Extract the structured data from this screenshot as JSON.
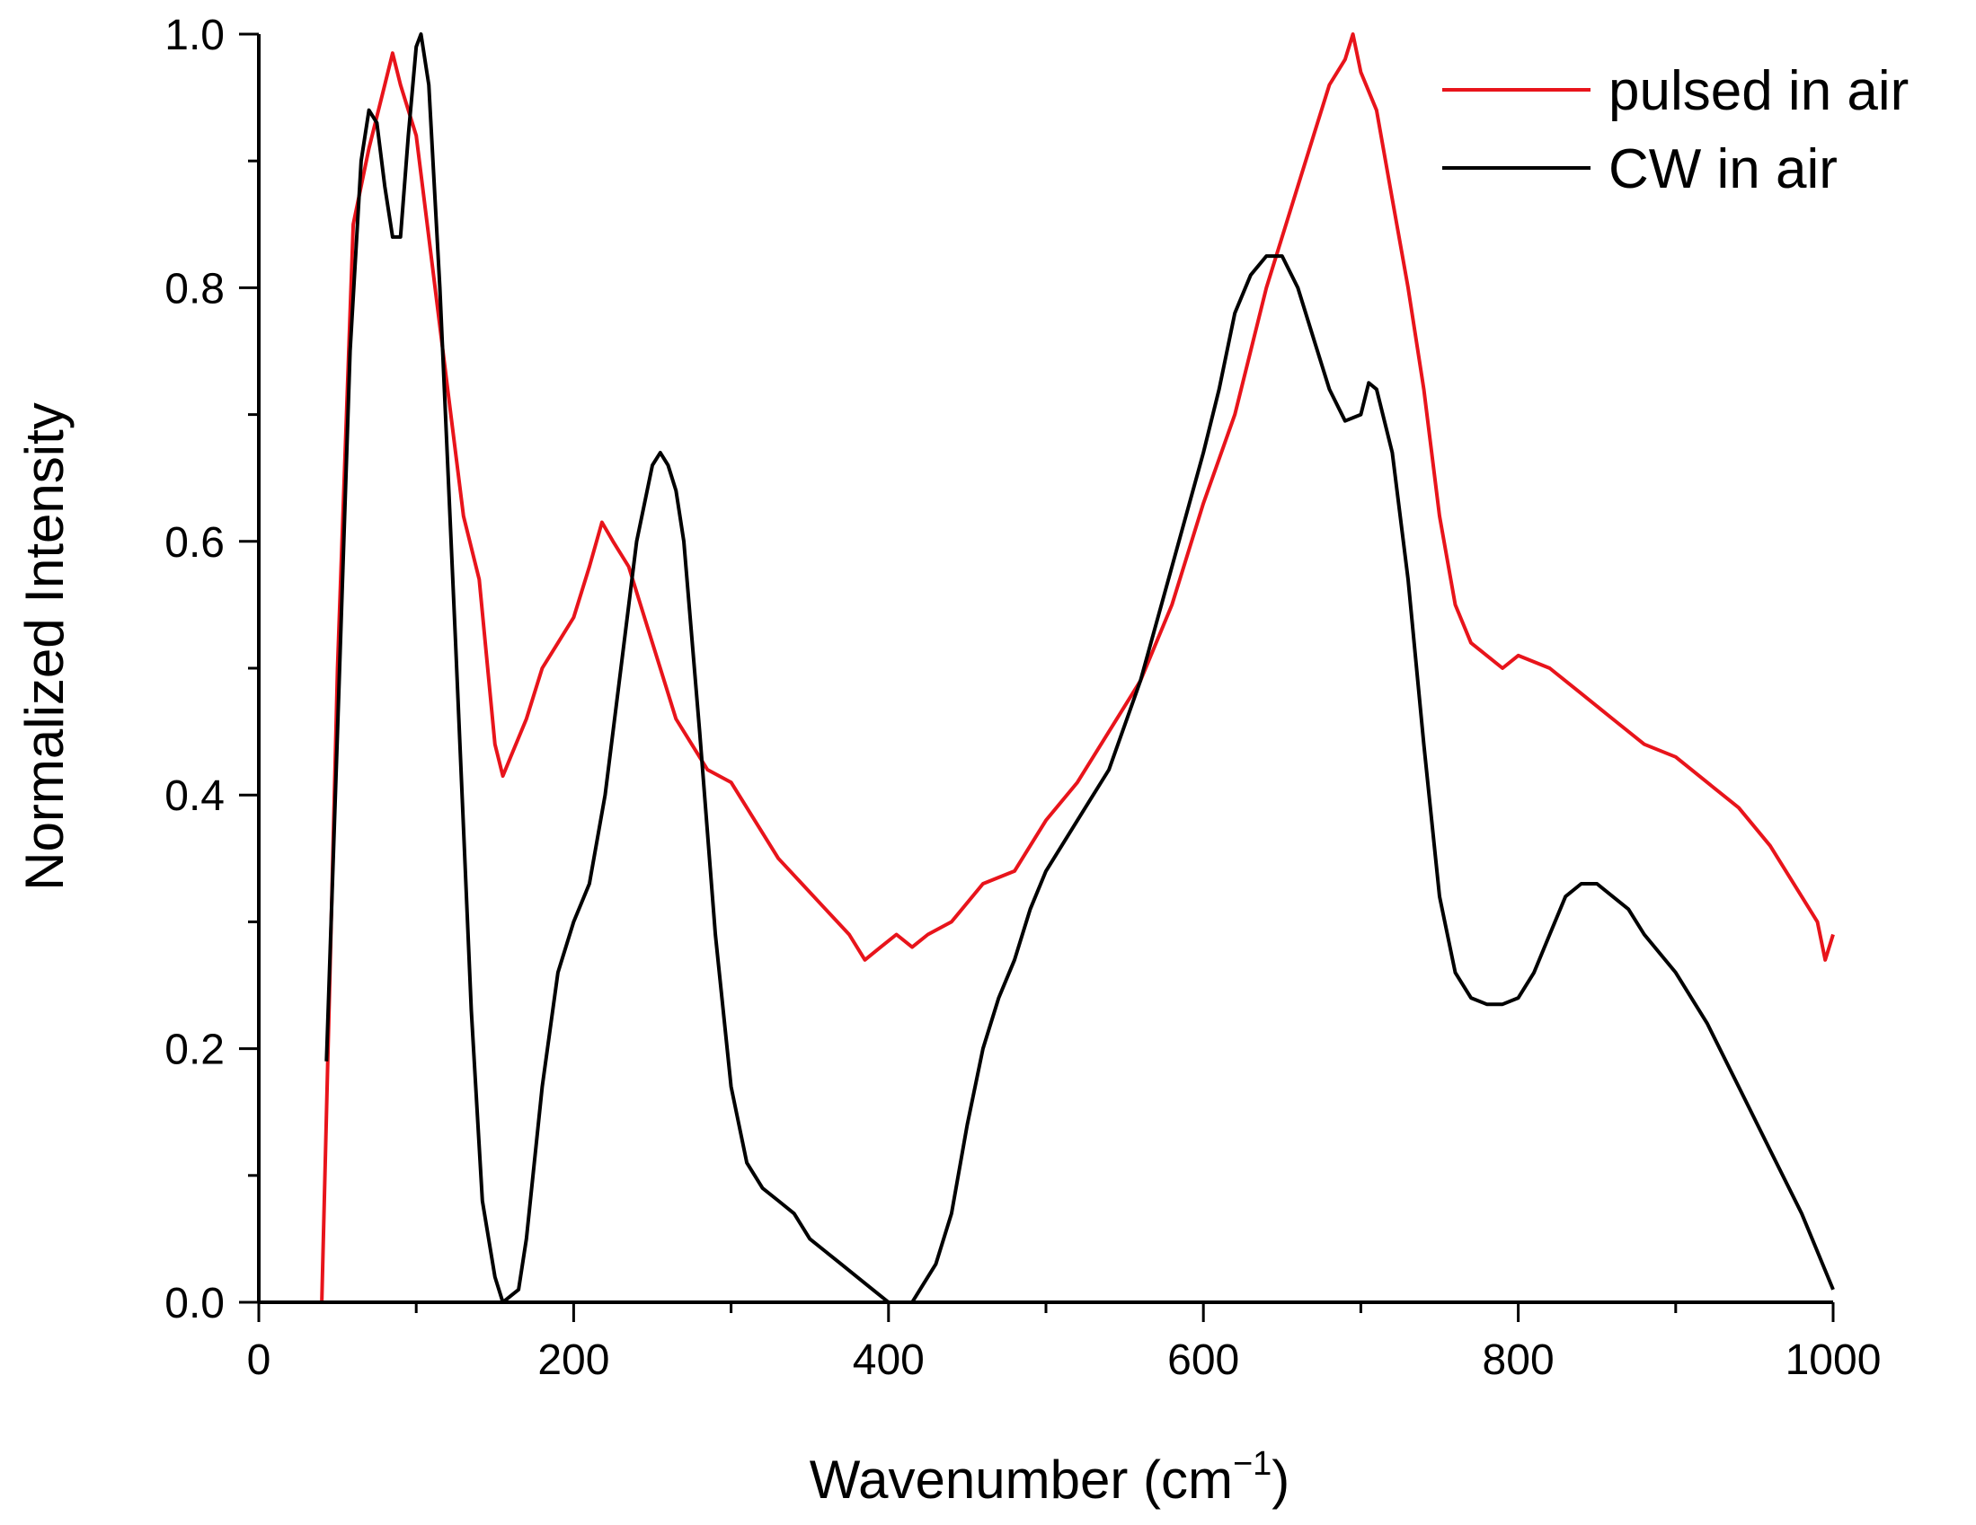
{
  "chart_data": {
    "type": "line",
    "xlabel": "Wavenumber (cm",
    "xlabel_sup": "−1",
    "xlabel_close": ")",
    "ylabel": "Normalized Intensity",
    "xlim": [
      0,
      1000
    ],
    "ylim": [
      0,
      1.0
    ],
    "x_ticks": [
      0,
      200,
      400,
      600,
      800,
      1000
    ],
    "x_tick_labels": [
      "0",
      "200",
      "400",
      "600",
      "800",
      "1000"
    ],
    "y_ticks": [
      0,
      0.2,
      0.4,
      0.6,
      0.8,
      1.0
    ],
    "y_tick_labels": [
      "0.0",
      "0.2",
      "0.4",
      "0.6",
      "0.8",
      "1.0"
    ],
    "grid": false,
    "legend_position": "top-right",
    "series": [
      {
        "name": "pulsed in air",
        "color": "#e8141b",
        "x": [
          40,
          50,
          60,
          70,
          80,
          85,
          90,
          100,
          110,
          120,
          130,
          140,
          150,
          155,
          160,
          170,
          180,
          190,
          200,
          210,
          218,
          225,
          235,
          245,
          255,
          265,
          275,
          285,
          300,
          315,
          330,
          345,
          360,
          375,
          385,
          395,
          405,
          415,
          425,
          440,
          460,
          480,
          500,
          520,
          540,
          560,
          580,
          600,
          620,
          640,
          650,
          660,
          670,
          680,
          690,
          695,
          700,
          710,
          720,
          730,
          740,
          750,
          760,
          770,
          780,
          790,
          800,
          820,
          840,
          860,
          880,
          900,
          920,
          940,
          960,
          980,
          990,
          995,
          1000
        ],
        "y": [
          0.0,
          0.5,
          0.85,
          0.91,
          0.96,
          0.985,
          0.96,
          0.92,
          0.82,
          0.72,
          0.62,
          0.57,
          0.44,
          0.415,
          0.43,
          0.46,
          0.5,
          0.52,
          0.54,
          0.58,
          0.615,
          0.6,
          0.58,
          0.54,
          0.5,
          0.46,
          0.44,
          0.42,
          0.41,
          0.38,
          0.35,
          0.33,
          0.31,
          0.29,
          0.27,
          0.28,
          0.29,
          0.28,
          0.29,
          0.3,
          0.33,
          0.34,
          0.38,
          0.41,
          0.45,
          0.49,
          0.55,
          0.63,
          0.7,
          0.8,
          0.84,
          0.88,
          0.92,
          0.96,
          0.98,
          1.0,
          0.97,
          0.94,
          0.87,
          0.8,
          0.72,
          0.62,
          0.55,
          0.52,
          0.51,
          0.5,
          0.51,
          0.5,
          0.48,
          0.46,
          0.44,
          0.43,
          0.41,
          0.39,
          0.36,
          0.32,
          0.3,
          0.27,
          0.29
        ]
      },
      {
        "name": "CW in air",
        "color": "#000000",
        "x": [
          43,
          50,
          58,
          65,
          70,
          75,
          80,
          85,
          90,
          95,
          100,
          103,
          108,
          115,
          125,
          135,
          142,
          150,
          155,
          160,
          165,
          170,
          180,
          190,
          200,
          210,
          220,
          230,
          240,
          250,
          255,
          260,
          265,
          270,
          280,
          290,
          300,
          310,
          320,
          330,
          340,
          350,
          360,
          370,
          380,
          390,
          400,
          405,
          410,
          415,
          420,
          430,
          440,
          450,
          460,
          470,
          480,
          490,
          500,
          510,
          520,
          540,
          560,
          580,
          600,
          610,
          620,
          630,
          640,
          650,
          660,
          670,
          680,
          690,
          700,
          705,
          710,
          720,
          730,
          740,
          750,
          760,
          770,
          780,
          790,
          800,
          810,
          820,
          830,
          840,
          850,
          860,
          870,
          880,
          900,
          920,
          940,
          960,
          980,
          990,
          1000
        ],
        "y": [
          0.19,
          0.45,
          0.75,
          0.9,
          0.94,
          0.93,
          0.88,
          0.84,
          0.84,
          0.92,
          0.99,
          1.0,
          0.96,
          0.8,
          0.52,
          0.23,
          0.08,
          0.02,
          0.0,
          0.005,
          0.01,
          0.05,
          0.17,
          0.26,
          0.3,
          0.33,
          0.4,
          0.5,
          0.6,
          0.66,
          0.67,
          0.66,
          0.64,
          0.6,
          0.45,
          0.29,
          0.17,
          0.11,
          0.09,
          0.08,
          0.07,
          0.05,
          0.04,
          0.03,
          0.02,
          0.01,
          0.0,
          0.0,
          0.0,
          0.0,
          0.01,
          0.03,
          0.07,
          0.14,
          0.2,
          0.24,
          0.27,
          0.31,
          0.34,
          0.36,
          0.38,
          0.42,
          0.49,
          0.58,
          0.67,
          0.72,
          0.78,
          0.81,
          0.825,
          0.825,
          0.8,
          0.76,
          0.72,
          0.695,
          0.7,
          0.725,
          0.72,
          0.67,
          0.57,
          0.44,
          0.32,
          0.26,
          0.24,
          0.235,
          0.235,
          0.24,
          0.26,
          0.29,
          0.32,
          0.33,
          0.33,
          0.32,
          0.31,
          0.29,
          0.26,
          0.22,
          0.17,
          0.12,
          0.07,
          0.04,
          0.01
        ]
      }
    ]
  }
}
